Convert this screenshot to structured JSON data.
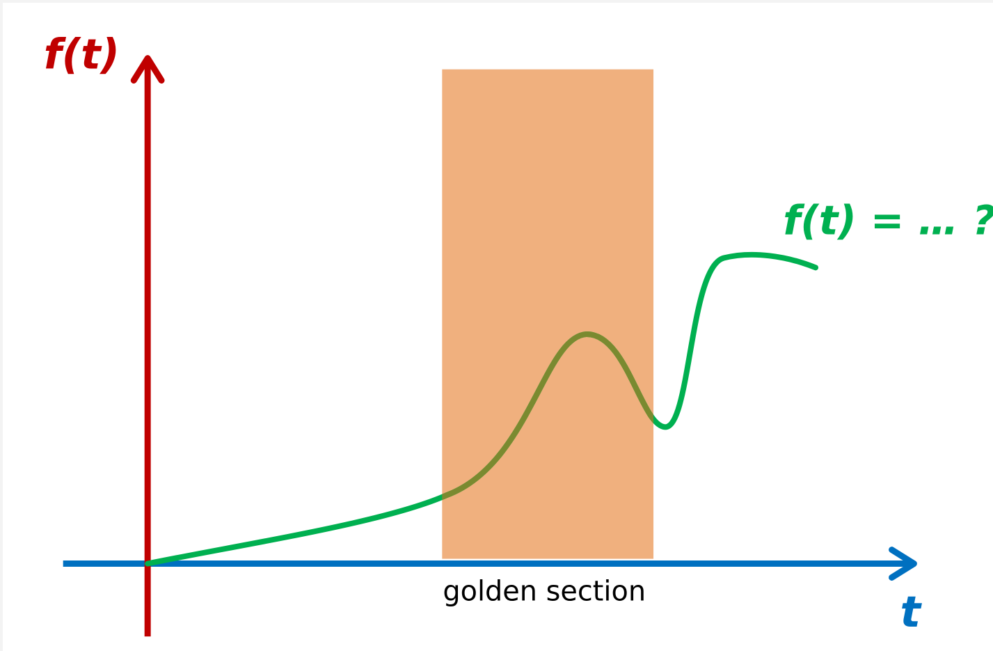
{
  "labels": {
    "y_axis": "f(t)",
    "x_axis": "t",
    "curve": "f(t) = … ?",
    "section": "golden section"
  },
  "colors": {
    "y_axis": "#c00000",
    "x_axis": "#0070c0",
    "curve": "#00b050",
    "section_fill": "#f0b07e",
    "curve_in_section": "#7a8a30",
    "section_text": "#000000"
  }
}
